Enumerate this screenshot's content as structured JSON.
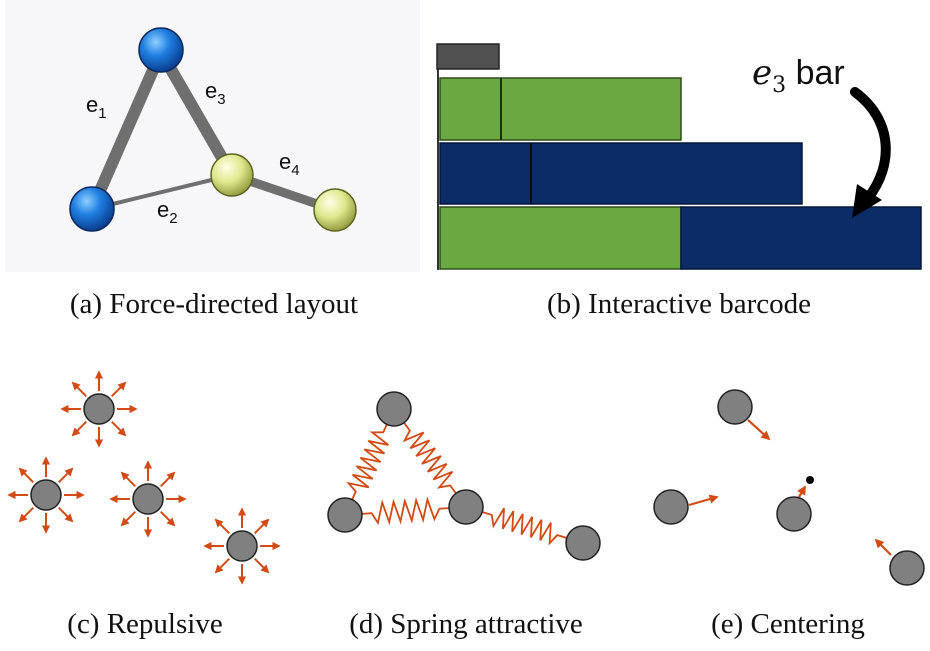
{
  "panels": {
    "a": {
      "caption": "(a)  Force-directed layout",
      "edges": [
        {
          "base": "e",
          "sub": "1"
        },
        {
          "base": "e",
          "sub": "2"
        },
        {
          "base": "e",
          "sub": "3"
        },
        {
          "base": "e",
          "sub": "4"
        }
      ]
    },
    "b": {
      "caption": "(b)  Interactive barcode",
      "bar_label": {
        "var": "e",
        "sub": "3",
        "word": " bar"
      }
    },
    "c": {
      "caption": "(c)  Repulsive"
    },
    "d": {
      "caption": "(d)  Spring attractive"
    },
    "e": {
      "caption": "(e)  Centering"
    }
  },
  "colors": {
    "node_blue": "#1f6fd0",
    "node_yellow": "#d8e68a",
    "edge_gray": "#707070",
    "bar_green": "#6aa842",
    "bar_navy": "#0b2c66",
    "force_orange": "#d24a14",
    "node_gray": "#808080"
  }
}
